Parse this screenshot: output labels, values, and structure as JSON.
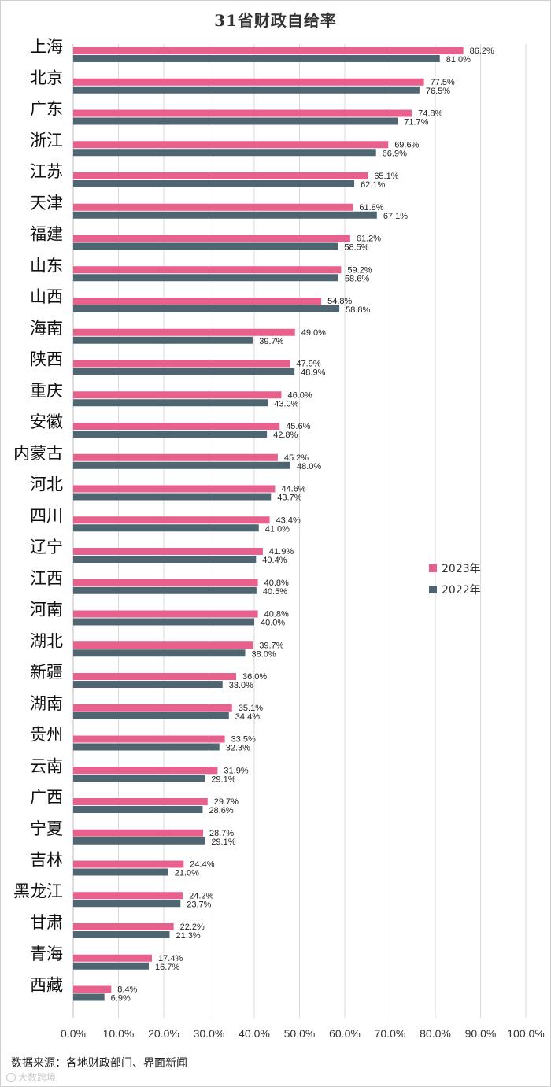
{
  "title": "31省财政自给率",
  "source_text": "数据来源：各地财政部门、界面新闻",
  "watermark_text": "大数跨境",
  "colors": {
    "series_2023": "#E8608C",
    "series_2022": "#4F6572",
    "grid": "#D9D9D9",
    "axis_text": "#333333"
  },
  "chart_data": {
    "type": "bar",
    "orientation": "horizontal",
    "categories": [
      "上海",
      "北京",
      "广东",
      "浙江",
      "江苏",
      "天津",
      "福建",
      "山东",
      "山西",
      "海南",
      "陕西",
      "重庆",
      "安徽",
      "内蒙古",
      "河北",
      "四川",
      "辽宁",
      "江西",
      "河南",
      "湖北",
      "新疆",
      "湖南",
      "贵州",
      "云南",
      "广西",
      "宁夏",
      "吉林",
      "黑龙江",
      "甘肃",
      "青海",
      "西藏"
    ],
    "series": [
      {
        "name": "2023年",
        "values": [
          86.2,
          77.5,
          74.8,
          69.6,
          65.1,
          61.8,
          61.2,
          59.2,
          54.8,
          49.0,
          47.9,
          46.0,
          45.6,
          45.2,
          44.6,
          43.4,
          41.9,
          40.8,
          40.8,
          39.7,
          36.0,
          35.1,
          33.5,
          31.9,
          29.7,
          28.7,
          24.4,
          24.2,
          22.2,
          17.4,
          8.4
        ]
      },
      {
        "name": "2022年",
        "values": [
          81.0,
          76.5,
          71.7,
          66.9,
          62.1,
          67.1,
          58.5,
          58.6,
          58.8,
          39.7,
          48.9,
          43.0,
          42.8,
          48.0,
          43.7,
          41.0,
          40.4,
          40.5,
          40.0,
          38.0,
          33.0,
          34.4,
          32.3,
          29.1,
          28.6,
          29.1,
          21.0,
          23.7,
          21.3,
          16.7,
          6.9
        ]
      }
    ],
    "xlim": [
      0,
      100
    ],
    "x_ticks": [
      "0.0%",
      "10.0%",
      "20.0%",
      "30.0%",
      "40.0%",
      "50.0%",
      "60.0%",
      "70.0%",
      "80.0%",
      "90.0%",
      "100.0%"
    ],
    "value_suffix": "%",
    "grid": true,
    "legend_position": "right"
  }
}
